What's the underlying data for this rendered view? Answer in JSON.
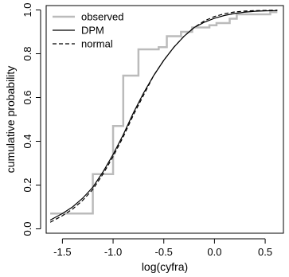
{
  "chart_data": {
    "type": "line",
    "title": "",
    "xlabel": "log(cyfra)",
    "ylabel": "cumulative probability",
    "xlim": [
      -1.66,
      0.68
    ],
    "ylim": [
      -0.02,
      1.02
    ],
    "xticks": [
      -1.5,
      -1.0,
      -0.5,
      0.0,
      0.5
    ],
    "xtick_labels": [
      "-1.5",
      "-1.0",
      "-0.5",
      "0.0",
      "0.5"
    ],
    "yticks": [
      0.0,
      0.2,
      0.4,
      0.6,
      0.8,
      1.0
    ],
    "ytick_labels": [
      "0.0",
      "0.2",
      "0.4",
      "0.6",
      "0.8",
      "1.0"
    ],
    "grid": false,
    "legend_position": "top-left",
    "series": [
      {
        "name": "observed",
        "style": "step",
        "color": "#bbbbbb",
        "x": [
          -1.62,
          -1.2,
          -1.2,
          -1.0,
          -1.0,
          -0.9,
          -0.9,
          -0.75,
          -0.75,
          -0.55,
          -0.55,
          -0.47,
          -0.47,
          -0.33,
          -0.33,
          -0.22,
          -0.22,
          -0.05,
          -0.05,
          0.02,
          0.02,
          0.15,
          0.15,
          0.22,
          0.22,
          0.55,
          0.55,
          0.62
        ],
        "y": [
          0.07,
          0.07,
          0.25,
          0.25,
          0.47,
          0.47,
          0.7,
          0.7,
          0.82,
          0.82,
          0.83,
          0.83,
          0.88,
          0.88,
          0.9,
          0.9,
          0.92,
          0.92,
          0.93,
          0.93,
          0.94,
          0.94,
          0.96,
          0.96,
          0.98,
          0.98,
          0.99,
          0.99
        ]
      },
      {
        "name": "DPM",
        "style": "solid",
        "color": "#000000",
        "x": [
          -1.62,
          -1.5,
          -1.4,
          -1.3,
          -1.2,
          -1.1,
          -1.0,
          -0.9,
          -0.8,
          -0.7,
          -0.6,
          -0.5,
          -0.4,
          -0.3,
          -0.2,
          -0.1,
          0.0,
          0.1,
          0.2,
          0.3,
          0.4,
          0.5,
          0.62
        ],
        "y": [
          0.04,
          0.07,
          0.1,
          0.14,
          0.19,
          0.26,
          0.34,
          0.43,
          0.53,
          0.62,
          0.7,
          0.77,
          0.83,
          0.88,
          0.92,
          0.944,
          0.962,
          0.975,
          0.984,
          0.99,
          0.994,
          0.996,
          0.997
        ]
      },
      {
        "name": "normal",
        "style": "dashed",
        "color": "#000000",
        "x": [
          -1.62,
          -1.5,
          -1.4,
          -1.3,
          -1.2,
          -1.1,
          -1.0,
          -0.9,
          -0.8,
          -0.7,
          -0.6,
          -0.5,
          -0.4,
          -0.3,
          -0.2,
          -0.1,
          0.0,
          0.1,
          0.2,
          0.3,
          0.4,
          0.5,
          0.62
        ],
        "y": [
          0.03,
          0.06,
          0.09,
          0.13,
          0.18,
          0.25,
          0.33,
          0.42,
          0.52,
          0.61,
          0.7,
          0.77,
          0.83,
          0.88,
          0.92,
          0.95,
          0.97,
          0.983,
          0.991,
          0.995,
          0.997,
          0.998,
          0.999
        ]
      }
    ]
  }
}
